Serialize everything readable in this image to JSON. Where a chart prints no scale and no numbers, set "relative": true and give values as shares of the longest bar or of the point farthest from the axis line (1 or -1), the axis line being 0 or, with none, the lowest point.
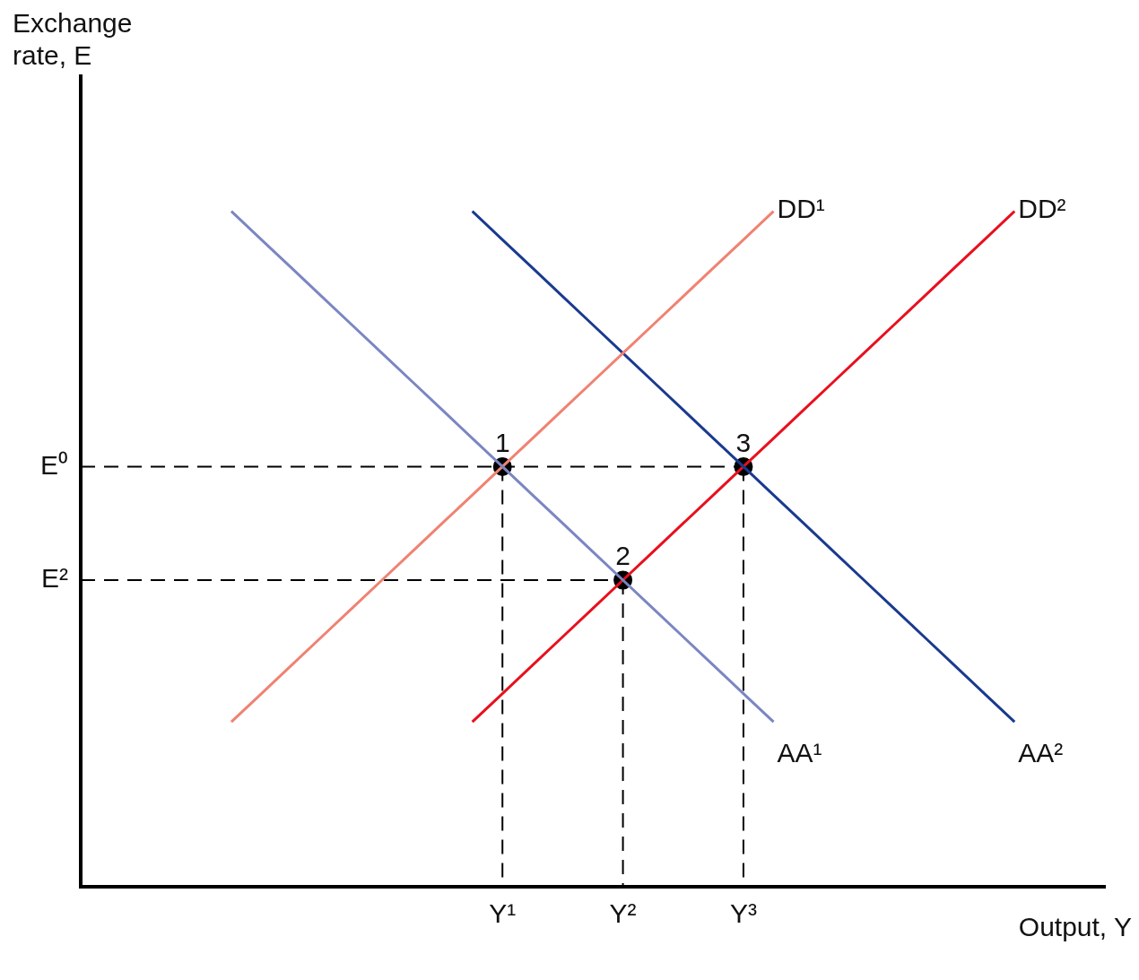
{
  "chart_data": {
    "type": "line",
    "relative": true,
    "xlabel": "Output, Y",
    "categories": [
      null,
      null,
      null,
      null,
      null,
      null,
      null,
      null,
      null,
      null,
      null,
      null,
      null,
      null,
      "Y¹",
      null,
      null,
      null,
      "Y²",
      null,
      null,
      null,
      "Y³",
      null,
      null,
      null,
      null,
      null,
      null,
      null,
      null,
      null,
      null,
      null,
      null
    ],
    "grid": false,
    "legend": false,
    "annotations": [
      "Exchange rate, E",
      {
        "text": "1",
        "x": "Y¹",
        "y": 0.622
      },
      {
        "text": "2",
        "x": "Y²",
        "y": 0.454
      },
      {
        "text": "3",
        "x": "Y³",
        "y": 0.622
      }
    ],
    "series": [
      {
        "name": "AA¹",
        "color": "#7b86c2",
        "values": [
          null,
          null,
          null,
          null,
          null,
          1,
          0.958,
          0.916,
          0.874,
          0.832,
          0.79,
          0.748,
          0.706,
          0.664,
          0.622,
          0.58,
          0.538,
          0.496,
          0.454,
          0.412,
          0.37,
          0.328,
          0.286,
          0.244,
          null,
          null,
          null,
          null,
          null,
          null,
          null,
          null,
          null,
          null,
          null
        ]
      },
      {
        "name": "DD¹",
        "color": "#f08272",
        "values": [
          null,
          null,
          null,
          null,
          null,
          0.244,
          0.286,
          0.328,
          0.37,
          0.412,
          0.454,
          0.496,
          0.538,
          0.58,
          0.622,
          0.664,
          0.706,
          0.748,
          0.79,
          0.832,
          0.874,
          0.916,
          0.958,
          1,
          null,
          null,
          null,
          null,
          null,
          null,
          null,
          null,
          null,
          null,
          null
        ]
      },
      {
        "name": "AA²",
        "color": "#1a3a8f",
        "values": [
          null,
          null,
          null,
          null,
          null,
          null,
          null,
          null,
          null,
          null,
          null,
          null,
          null,
          1,
          0.958,
          0.916,
          0.874,
          0.832,
          0.79,
          0.748,
          0.706,
          0.664,
          0.622,
          0.58,
          0.538,
          0.496,
          0.454,
          0.412,
          0.37,
          0.328,
          0.286,
          0.244,
          null,
          null,
          null
        ]
      },
      {
        "name": "DD²",
        "color": "#e8101e",
        "values": [
          null,
          null,
          null,
          null,
          null,
          null,
          null,
          null,
          null,
          null,
          null,
          null,
          null,
          0.244,
          0.286,
          0.328,
          0.37,
          0.412,
          0.454,
          0.496,
          0.538,
          0.58,
          0.622,
          0.664,
          0.706,
          0.748,
          0.79,
          0.832,
          0.874,
          0.916,
          0.958,
          1,
          null,
          null,
          null
        ]
      },
      {
        "name": "E⁰",
        "color": "#000000",
        "line_style": "dashed",
        "values": [
          0.622,
          0.622,
          0.622,
          0.622,
          0.622,
          0.622,
          0.622,
          0.622,
          0.622,
          0.622,
          0.622,
          0.622,
          0.622,
          0.622,
          0.622,
          0.622,
          0.622,
          0.622,
          0.622,
          0.622,
          0.622,
          0.622,
          0.622,
          null,
          null,
          null,
          null,
          null,
          null,
          null,
          null,
          null,
          null,
          null,
          null
        ]
      },
      {
        "name": "E²",
        "color": "#000000",
        "line_style": "dashed",
        "values": [
          0.454,
          0.454,
          0.454,
          0.454,
          0.454,
          0.454,
          0.454,
          0.454,
          0.454,
          0.454,
          0.454,
          0.454,
          0.454,
          0.454,
          0.454,
          0.454,
          0.454,
          0.454,
          0.454,
          null,
          null,
          null,
          null,
          null,
          null,
          null,
          null,
          null,
          null,
          null,
          null,
          null,
          null,
          null,
          null
        ]
      },
      {
        "color": "#000000",
        "line_style": "dashed",
        "x": [
          "Y¹",
          "Y¹"
        ],
        "values": [
          0.622,
          0
        ]
      },
      {
        "color": "#000000",
        "line_style": "dashed",
        "x": [
          "Y²",
          "Y²"
        ],
        "values": [
          0.454,
          0
        ]
      },
      {
        "color": "#000000",
        "line_style": "dashed",
        "x": [
          "Y³",
          "Y³"
        ],
        "values": [
          0.622,
          0
        ]
      },
      {
        "type": "scatter",
        "color": "#000000",
        "marker": "circle",
        "x": [
          "Y¹",
          "Y²",
          "Y³"
        ],
        "values": [
          0.622,
          0.454,
          0.622
        ]
      }
    ]
  }
}
